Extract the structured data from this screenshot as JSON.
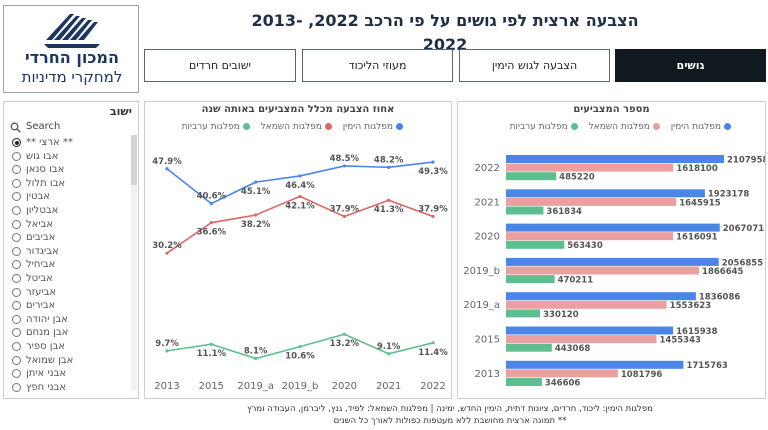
{
  "page": {
    "title": "הצבעה ארצית לפי גושים על פי הרכב 2022, 2013-2022"
  },
  "logo": {
    "line1": "המכון החרדי",
    "line2": "למחקרי מדיניות"
  },
  "nav": {
    "buttons": [
      {
        "label": "גושים",
        "active": true
      },
      {
        "label": "הצבעה לגוש הימין",
        "active": false
      },
      {
        "label": "מעוזי הליכוד",
        "active": false
      },
      {
        "label": "ישובים חרדים",
        "active": false
      }
    ]
  },
  "sidebar": {
    "title": "ישוב",
    "search_placeholder": "Search",
    "items": [
      "** ארצי **",
      "אבו גוש",
      "אבו סנאן",
      "אבו תלול",
      "אבטין",
      "אבטליון",
      "אביאל",
      "אביבים",
      "אביגדור",
      "אביחיל",
      "אביטל",
      "אביעזר",
      "אבירים",
      "אבן יהודה",
      "אבן מנחם",
      "אבן ספיר",
      "אבן שמואל",
      "אבני איתן",
      "אבני חפץ"
    ],
    "selected_index": 0
  },
  "line_chart": {
    "title": "אחוז הצבעה מכלל המצביעים באותה שנה",
    "legend": [
      "מפלגות הימין",
      "מפלגות השמאל",
      "מפלגות ערביות"
    ]
  },
  "bar_chart": {
    "title": "מספר המצביעים",
    "legend": [
      "מפלגות הימין",
      "מפלגות השמאל",
      "מפלגות ערביות"
    ]
  },
  "footer": {
    "line1": "מפלגות הימין: ליכוד, חרדים, ציונות דתית, הימין החדש, ימינה | מפלגות השמאל: לפיד, גנץ, ליברמן, העבודה ומרץ",
    "line2": "** תמונה ארצית מחושבת ללא מעטפות כפולות לאורך כל השנים"
  },
  "colors": {
    "right": "#4a86e8",
    "left": "#e06666",
    "arab": "#5dbf8f",
    "leftbar": "#eaa0a0"
  },
  "chart_data": [
    {
      "type": "line",
      "title": "אחוז הצבעה מכלל המצביעים באותה שנה",
      "categories": [
        "2013",
        "2015",
        "2019_a",
        "2019_b",
        "2020",
        "2021",
        "2022"
      ],
      "series": [
        {
          "name": "מפלגות הימין",
          "values": [
            47.9,
            40.6,
            45.1,
            46.4,
            48.5,
            48.2,
            49.3
          ],
          "labels": [
            "47.9%",
            "40.6%",
            "45.1%",
            "46.4%",
            "48.5%",
            "48.2%",
            "49.3%"
          ]
        },
        {
          "name": "מפלגות השמאל",
          "values": [
            30.2,
            36.6,
            38.2,
            42.1,
            37.9,
            41.3,
            37.9
          ],
          "labels": [
            "30.2%",
            "36.6%",
            "38.2%",
            "42.1%",
            "37.9%",
            "41.3%",
            "37.9%"
          ]
        },
        {
          "name": "מפלגות ערביות",
          "values": [
            9.7,
            11.1,
            8.1,
            10.6,
            13.2,
            9.1,
            11.4
          ],
          "labels": [
            "9.7%",
            "11.1%",
            "8.1%",
            "10.6%",
            "13.2%",
            "9.1%",
            "11.4%"
          ]
        }
      ]
    },
    {
      "type": "bar",
      "title": "מספר המצביעים",
      "categories": [
        "2022",
        "2021",
        "2020",
        "2019_b",
        "2019_a",
        "2015",
        "2013"
      ],
      "series": [
        {
          "name": "מפלגות הימין",
          "values": [
            2107958,
            1923178,
            2067071,
            2056855,
            1836086,
            1615938,
            1715763
          ]
        },
        {
          "name": "מפלגות השמאל",
          "values": [
            1618100,
            1645915,
            1616091,
            1866645,
            1553623,
            1455343,
            1081796
          ]
        },
        {
          "name": "מפלגות ערביות",
          "values": [
            485220,
            361834,
            563430,
            470211,
            330120,
            443068,
            346606
          ]
        }
      ]
    }
  ]
}
